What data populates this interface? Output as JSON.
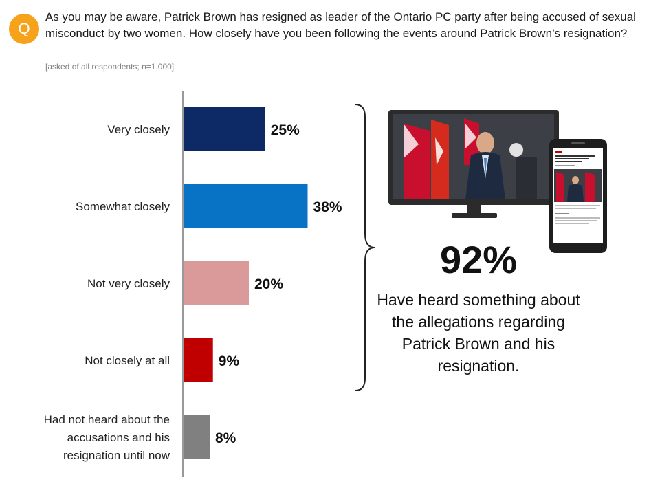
{
  "badge": "Q",
  "question": "As you may be aware, Patrick Brown has resigned as leader of the Ontario PC party after being accused of sexual misconduct by two women.  How closely have you been following the events around Patrick Brown’s resignation?",
  "note": "[asked of all respondents; n=1,000]",
  "callout": {
    "value": "92%",
    "text": "Have heard something about the allegations regarding Patrick Brown and his resignation."
  },
  "devices": {
    "phone_headline": "Kingston politicians react to Patrick Brown allegations, resignation"
  },
  "chart_data": {
    "type": "bar",
    "orientation": "horizontal",
    "categories": [
      "Very closely",
      "Somewhat closely",
      "Not very closely",
      "Not closely at all",
      "Had not heard about the accusations and his resignation until now"
    ],
    "category_lines": [
      [
        "Very closely"
      ],
      [
        "Somewhat closely"
      ],
      [
        "Not very closely"
      ],
      [
        "Not closely at all"
      ],
      [
        "Had not heard about the",
        "accusations and his",
        "resignation until now"
      ]
    ],
    "values": [
      25,
      38,
      20,
      9,
      8
    ],
    "labels": [
      "25%",
      "38%",
      "20%",
      "9%",
      "8%"
    ],
    "colors": [
      "#0e2a66",
      "#0872c4",
      "#db9a9a",
      "#c00000",
      "#808080"
    ],
    "xlim": [
      0,
      100
    ],
    "grid": false,
    "legend": "none"
  }
}
